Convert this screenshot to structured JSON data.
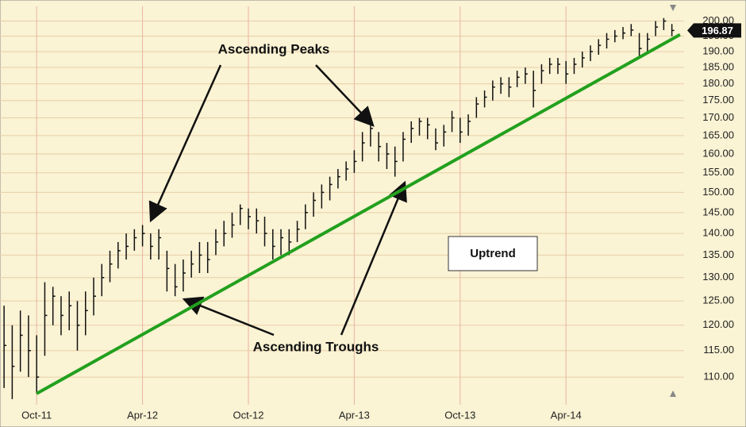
{
  "chart_data": {
    "type": "ohlc",
    "high": [
      124,
      120,
      123,
      122,
      118,
      129,
      128,
      126,
      127,
      125,
      127,
      130,
      133,
      136,
      138,
      140,
      141,
      142,
      140,
      141,
      136,
      133,
      134,
      136,
      138,
      138,
      141,
      143,
      145,
      147,
      146,
      146,
      144,
      141,
      141,
      141,
      143,
      147,
      150,
      152,
      154,
      156,
      158,
      161,
      166,
      168,
      166,
      163,
      162,
      166,
      169,
      170,
      170,
      167,
      168,
      172,
      170,
      171,
      176,
      178,
      181,
      182,
      182,
      184,
      185,
      184,
      186,
      188,
      188,
      187,
      188,
      190,
      192,
      194,
      196,
      197,
      198,
      199,
      196,
      196,
      200,
      201,
      199
    ],
    "low": [
      108,
      106,
      111,
      110,
      107,
      114,
      120,
      118,
      119,
      115,
      118,
      122,
      126,
      129,
      132,
      134,
      136,
      137,
      134,
      134,
      127,
      126,
      127,
      130,
      131,
      131,
      135,
      137,
      139,
      142,
      141,
      140,
      137,
      134,
      135,
      135,
      138,
      141,
      144,
      146,
      148,
      151,
      153,
      155,
      158,
      162,
      158,
      156,
      154,
      158,
      163,
      165,
      164,
      161,
      162,
      166,
      163,
      165,
      170,
      173,
      175,
      177,
      176,
      179,
      180,
      173,
      180,
      183,
      183,
      180,
      183,
      185,
      187,
      189,
      191,
      193,
      194,
      195,
      188,
      190,
      195,
      197,
      195
    ],
    "close": [
      116,
      112,
      118,
      115,
      110,
      122,
      126,
      122,
      124,
      120,
      123,
      126,
      130,
      133,
      136,
      137,
      139,
      140,
      137,
      139,
      132,
      128,
      131,
      133,
      135,
      134,
      138,
      140,
      142,
      146,
      144,
      143,
      140,
      137,
      139,
      138,
      141,
      145,
      148,
      150,
      152,
      154,
      156,
      158,
      163,
      167,
      162,
      160,
      158,
      164,
      167,
      169,
      168,
      163,
      166,
      170,
      166,
      169,
      174,
      176,
      179,
      180,
      179,
      182,
      183,
      178,
      184,
      186,
      186,
      183,
      186,
      188,
      190,
      192,
      194,
      195,
      196,
      197,
      191,
      194,
      198,
      200,
      196.87
    ],
    "color": "#111111",
    "last_price": 196.87,
    "xlim": [
      -0.5,
      83.5
    ],
    "xticks": [
      {
        "value": 4,
        "label": "Oct-11"
      },
      {
        "value": 17,
        "label": "Apr-12"
      },
      {
        "value": 30,
        "label": "Oct-12"
      },
      {
        "value": 43,
        "label": "Apr-13"
      },
      {
        "value": 56,
        "label": "Oct-13"
      },
      {
        "value": 69,
        "label": "Apr-14"
      }
    ],
    "ylim": [
      105,
      205
    ],
    "log_scale": true,
    "grid": true,
    "yticks": [
      {
        "value": 110,
        "label": "110.00"
      },
      {
        "value": 115,
        "label": "115.00"
      },
      {
        "value": 120,
        "label": "120.00"
      },
      {
        "value": 125,
        "label": "125.00"
      },
      {
        "value": 130,
        "label": "130.00"
      },
      {
        "value": 135,
        "label": "135.00"
      },
      {
        "value": 140,
        "label": "140.00"
      },
      {
        "value": 145,
        "label": "145.00"
      },
      {
        "value": 150,
        "label": "150.00"
      },
      {
        "value": 155,
        "label": "155.00"
      },
      {
        "value": 160,
        "label": "160.00"
      },
      {
        "value": 165,
        "label": "165.00"
      },
      {
        "value": 170,
        "label": "170.00"
      },
      {
        "value": 175,
        "label": "175.00"
      },
      {
        "value": 180,
        "label": "180.00"
      },
      {
        "value": 185,
        "label": "185.00"
      },
      {
        "value": 190,
        "label": "190.00"
      },
      {
        "value": 195,
        "label": "195.00"
      },
      {
        "value": 200,
        "label": "200.00"
      }
    ],
    "trendline": {
      "x": [
        4,
        83
      ],
      "y": [
        107,
        195.5
      ],
      "color": "#22a01e"
    },
    "annotations": [
      "Ascending Peaks",
      "Ascending Troughs",
      "Uptrend"
    ]
  }
}
